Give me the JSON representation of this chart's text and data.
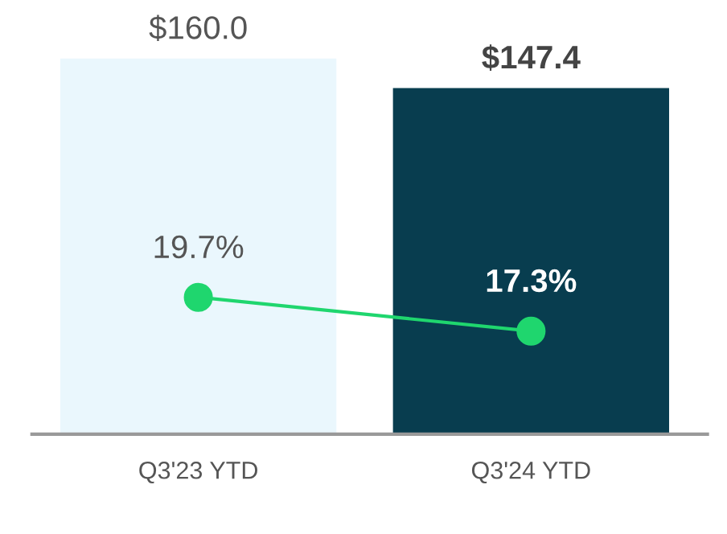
{
  "chart_data": {
    "type": "bar",
    "categories": [
      "Q3'23 YTD",
      "Q3'24 YTD"
    ],
    "series": [
      {
        "colors": [
          "#eaf7fd",
          "#083d4f"
        ],
        "values": [
          160.0,
          147.4
        ],
        "value_labels": [
          "$160.0",
          "$147.4"
        ]
      },
      {
        "type": "line",
        "axis": "y2",
        "color": "#1fd66e",
        "values": [
          19.7,
          17.3
        ],
        "value_labels": [
          "19.7%",
          "17.3%"
        ],
        "marker": "circle"
      }
    ],
    "tick_labels": "x",
    "legend": false,
    "grid": false
  }
}
